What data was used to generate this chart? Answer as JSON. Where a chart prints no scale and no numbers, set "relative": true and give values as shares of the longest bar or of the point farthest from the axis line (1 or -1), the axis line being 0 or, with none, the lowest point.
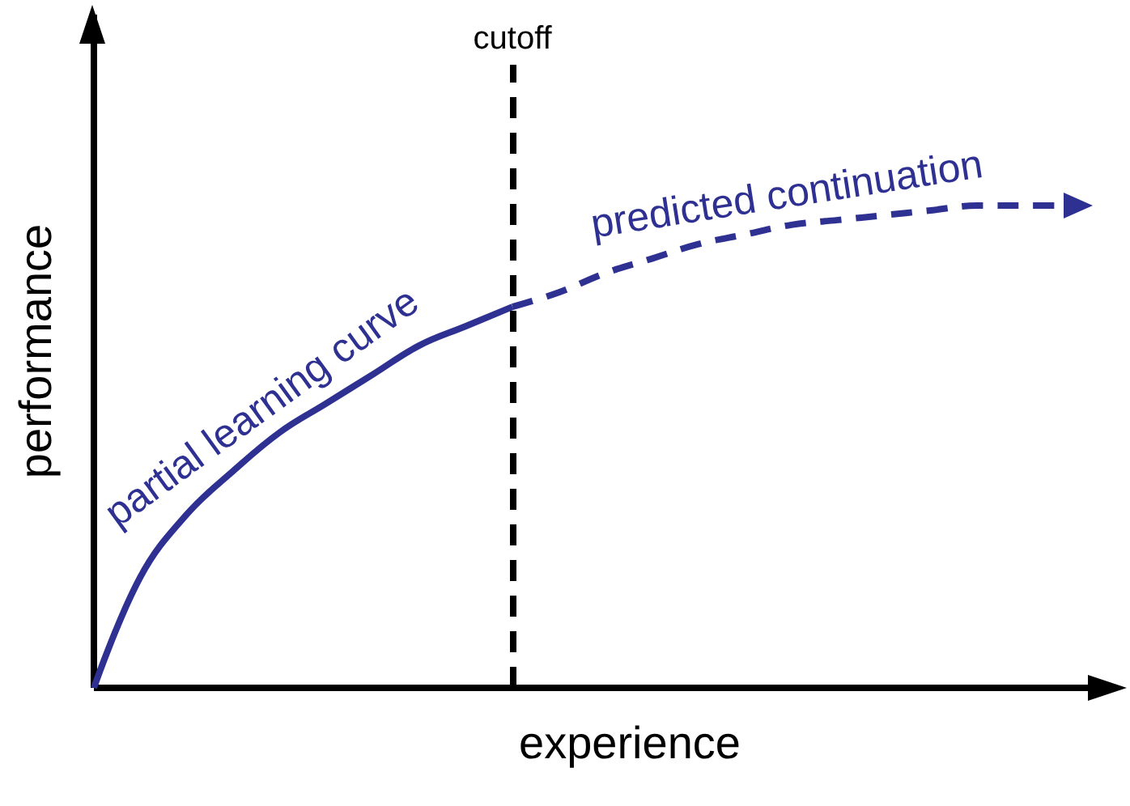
{
  "chart_data": {
    "type": "line",
    "xlabel": "experience",
    "ylabel": "performance",
    "relative": true,
    "categories": [
      null,
      null,
      null,
      null,
      null,
      null,
      null,
      null,
      null,
      null,
      null,
      null,
      null,
      null,
      null,
      null,
      null,
      null,
      null,
      null,
      null,
      null,
      null
    ],
    "series": [
      {
        "name": "partial learning curve",
        "color": "#2e3192",
        "line_style": "solid",
        "values": [
          0,
          0.23,
          0.36,
          0.45,
          0.53,
          0.59,
          0.65,
          0.71,
          0.75,
          0.79,
          null,
          null,
          null,
          null,
          null,
          null,
          null,
          null,
          null,
          null,
          null,
          null,
          null
        ]
      },
      {
        "name": "predicted continuation",
        "color": "#2e3192",
        "line_style": "dashed",
        "values": [
          null,
          null,
          null,
          null,
          null,
          null,
          null,
          null,
          null,
          0.79,
          0.82,
          0.86,
          0.89,
          0.92,
          0.94,
          0.96,
          0.97,
          0.98,
          0.99,
          1.0,
          1.0,
          1.0,
          null
        ]
      }
    ],
    "annotations": [
      "cutoff"
    ],
    "grid": false,
    "legend": false
  }
}
